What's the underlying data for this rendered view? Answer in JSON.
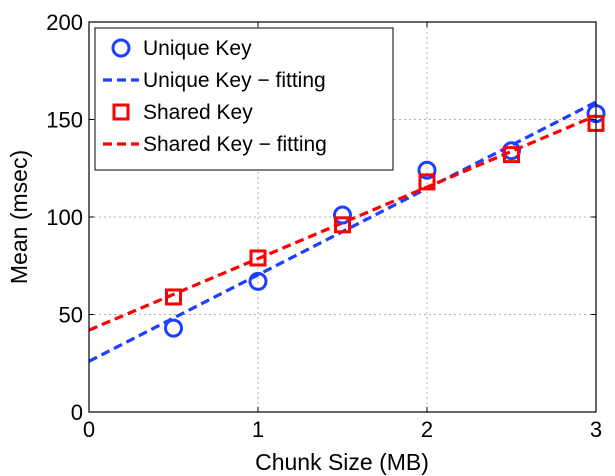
{
  "chart_data": {
    "type": "scatter",
    "title": "",
    "xlabel": "Chunk Size (MB)",
    "ylabel": "Mean (msec)",
    "xlim": [
      0,
      3
    ],
    "ylim": [
      0,
      200
    ],
    "xticks": [
      0,
      1,
      2,
      3
    ],
    "yticks": [
      0,
      50,
      100,
      150,
      200
    ],
    "grid": true,
    "legend_position": "top-left",
    "series": [
      {
        "name": "Unique Key",
        "kind": "markers",
        "marker": "circle",
        "color": "#1f3fff",
        "x": [
          0.5,
          1.0,
          1.5,
          2.0,
          2.5,
          3.0
        ],
        "y": [
          43,
          67,
          101,
          124,
          134,
          153
        ]
      },
      {
        "name": "Unique Key − fitting",
        "kind": "line",
        "style": "dashed",
        "color": "#1f3fff",
        "x": [
          0,
          3
        ],
        "y": [
          26,
          159
        ]
      },
      {
        "name": "Shared Key",
        "kind": "markers",
        "marker": "square",
        "color": "#ff0000",
        "x": [
          0.5,
          1.0,
          1.5,
          2.0,
          2.5,
          3.0
        ],
        "y": [
          59,
          79,
          96,
          118,
          132,
          148
        ]
      },
      {
        "name": "Shared Key − fitting",
        "kind": "line",
        "style": "dashed",
        "color": "#ff0000",
        "x": [
          0,
          3
        ],
        "y": [
          42,
          152
        ]
      }
    ]
  }
}
